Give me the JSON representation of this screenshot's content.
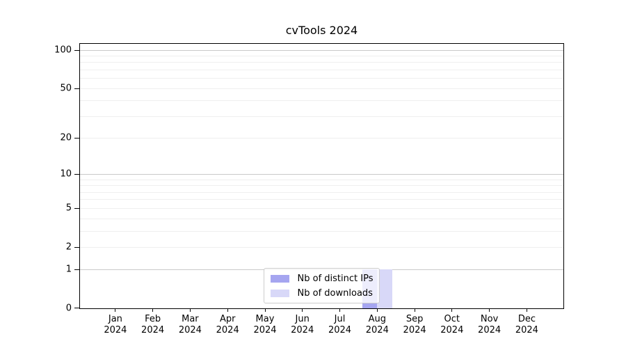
{
  "chart_data": {
    "type": "bar",
    "title": "cvTools 2024",
    "categories": [
      "Jan 2024",
      "Feb 2024",
      "Mar 2024",
      "Apr 2024",
      "May 2024",
      "Jun 2024",
      "Jul 2024",
      "Aug 2024",
      "Sep 2024",
      "Oct 2024",
      "Nov 2024",
      "Dec 2024"
    ],
    "series": [
      {
        "name": "Nb of distinct IPs",
        "color": "#a5a5f0",
        "values": [
          0,
          0,
          0,
          0,
          0,
          0,
          0,
          1,
          0,
          0,
          0,
          0
        ]
      },
      {
        "name": "Nb of downloads",
        "color": "#d8d8f8",
        "values": [
          0,
          0,
          0,
          0,
          0,
          0,
          0,
          1,
          0,
          0,
          0,
          0
        ]
      }
    ],
    "yscale": "log1p",
    "ylim": [
      0,
      111.5
    ],
    "y_major_ticks": [
      0,
      1,
      2,
      5,
      10,
      20,
      50,
      100
    ],
    "y_minor_ticks": [
      3,
      4,
      6,
      7,
      8,
      9,
      30,
      40,
      60,
      70,
      80,
      90
    ],
    "strong_gridline_values": [
      1,
      10,
      100
    ],
    "grid": "on",
    "legend_position": "lower center inside plot",
    "colors": {
      "strong_grid": "#c9c9c9",
      "minor_grid": "#efefef",
      "spine": "#000000",
      "tick_label": "#000000"
    },
    "layout_hints": {
      "x_first_tick_frac": 0.0732,
      "x_step_frac": 0.07737,
      "bar_width_frac_of_step": 0.4
    }
  }
}
